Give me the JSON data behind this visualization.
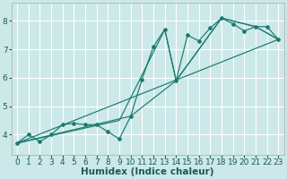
{
  "xlabel": "Humidex (Indice chaleur)",
  "xlim": [
    -0.5,
    23.5
  ],
  "ylim": [
    3.3,
    8.65
  ],
  "xticks": [
    0,
    1,
    2,
    3,
    4,
    5,
    6,
    7,
    8,
    9,
    10,
    11,
    12,
    13,
    14,
    15,
    16,
    17,
    18,
    19,
    20,
    21,
    22,
    23
  ],
  "yticks": [
    4,
    5,
    6,
    7,
    8
  ],
  "bg_color": "#cce8e8",
  "line_color": "#1a7a6e",
  "grid_color": "#ffffff",
  "main_x": [
    0,
    1,
    2,
    3,
    4,
    5,
    6,
    7,
    8,
    9,
    10,
    11,
    12,
    13,
    14,
    15,
    16,
    17,
    18,
    19,
    20,
    21,
    22,
    23
  ],
  "main_y": [
    3.7,
    4.0,
    3.75,
    4.0,
    4.35,
    4.4,
    4.35,
    4.35,
    4.1,
    3.85,
    4.65,
    5.95,
    7.1,
    7.7,
    5.9,
    7.5,
    7.3,
    7.75,
    8.1,
    7.9,
    7.65,
    7.8,
    7.8,
    7.35
  ],
  "line2_x": [
    0,
    9,
    13,
    14,
    18,
    21,
    23
  ],
  "line2_y": [
    3.7,
    4.5,
    7.7,
    5.9,
    8.1,
    7.8,
    7.35
  ],
  "line3_x": [
    0,
    10,
    14,
    18,
    21,
    23
  ],
  "line3_y": [
    3.7,
    4.65,
    5.9,
    8.1,
    7.8,
    7.35
  ],
  "line4_x": [
    0,
    23
  ],
  "line4_y": [
    3.7,
    7.35
  ],
  "font_color": "#1a5c55",
  "tick_fontsize": 6.5,
  "xlabel_fontsize": 7.5
}
